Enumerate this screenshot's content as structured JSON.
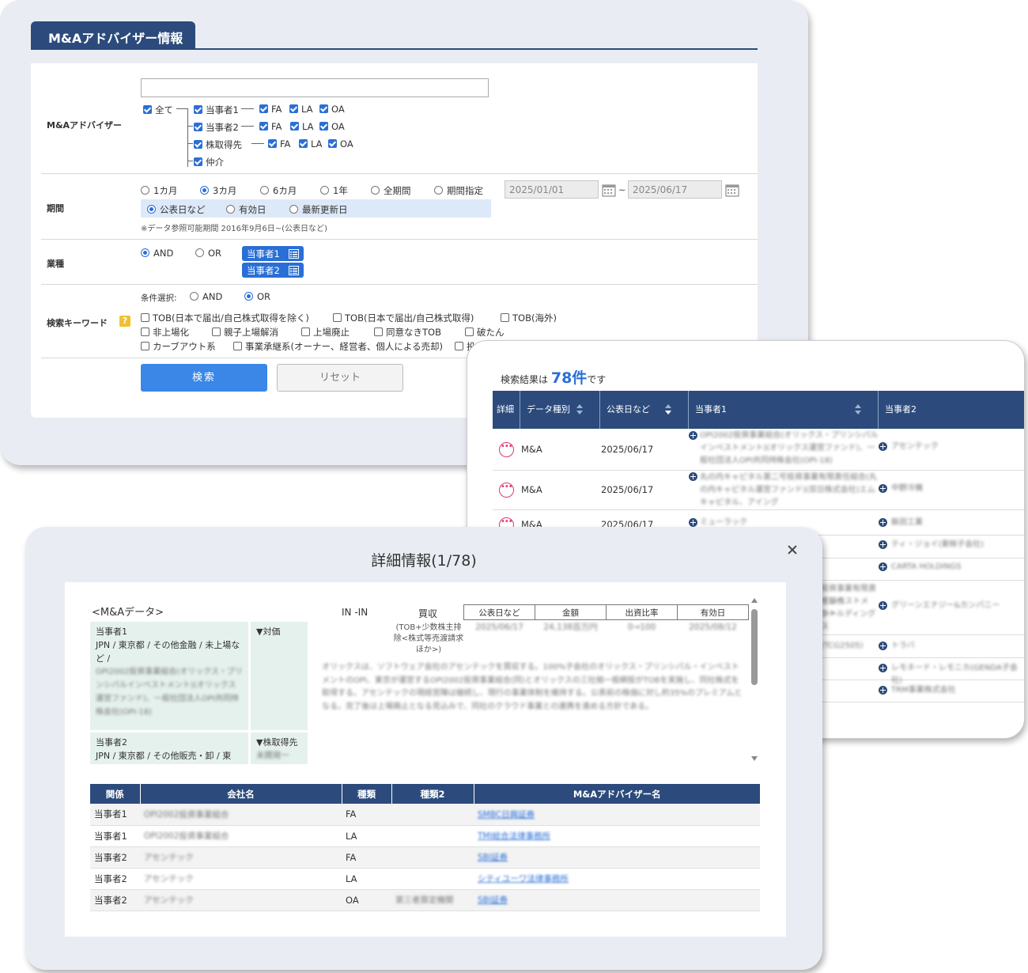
{
  "search_panel": {
    "tab_title": "M&Aアドバイザー情報",
    "advisor": {
      "label": "M&Aアドバイザー",
      "all_label": "全て",
      "rows": [
        {
          "party": "当事者1",
          "roles": [
            "FA",
            "LA",
            "OA"
          ]
        },
        {
          "party": "当事者2",
          "roles": [
            "FA",
            "LA",
            "OA"
          ]
        },
        {
          "party": "株取得先",
          "roles": [
            "FA",
            "LA",
            "OA"
          ]
        },
        {
          "party": "仲介",
          "roles": []
        }
      ]
    },
    "period": {
      "label": "期間",
      "options": [
        "1カ月",
        "3カ月",
        "6カ月",
        "1年",
        "全期間",
        "期間指定"
      ],
      "selected": "3カ月",
      "date_from": "2025/01/01",
      "date_sep": "~",
      "date_to": "2025/06/17",
      "basis_options": [
        "公表日など",
        "有効日",
        "最新更新日"
      ],
      "note": "※データ参照可能期間 2016年9月6日~(公表日など)"
    },
    "industry": {
      "label": "業種",
      "and_label": "AND",
      "or_label": "OR",
      "btn1": "当事者1",
      "btn2": "当事者2"
    },
    "keyword": {
      "label": "検索キーワード",
      "help": "?",
      "cond_label": "条件選択:",
      "and_label": "AND",
      "or_label": "OR",
      "items": [
        "TOB(日本で届出/自己株式取得を除く)",
        "TOB(日本で届出/自己株式取得)",
        "TOB(海外)",
        "非上場化",
        "親子上場解消",
        "上場廃止",
        "同意なきTOB",
        "破たん",
        "カーブアウト系",
        "事業承継系(オーナー、経営者、個人による売却)",
        "投"
      ]
    },
    "search_btn": "検索",
    "reset_btn": "リセット"
  },
  "results_panel": {
    "prefix": "検索結果は",
    "count": "78件",
    "suffix": "です",
    "columns": [
      "詳細",
      "データ種別",
      "公表日など",
      "当事者1",
      "当事者2"
    ],
    "rows": [
      {
        "type": "M&A",
        "date": "2025/06/17",
        "party1": "OPI2002投資事業組合(オリックス・プリンシパルインベストメント)(オリックス運営ファンド)、一般社団法人OPI共同持株会社(OPI-18)",
        "party2": "アセンテック"
      },
      {
        "type": "M&A",
        "date": "2025/06/17",
        "party1": "丸の内キャピタル第二号投資事業有限責任組合(丸の内キャピタル運営ファンド)(双日株式会社)エムキャピタル、アイング",
        "party2": "中野冷機"
      },
      {
        "type": "M&A",
        "date": "2025/06/17",
        "party1": "ミューラック",
        "party2": "飯田工業"
      }
    ],
    "extra_party2": [
      "ティ・ジョイ(東映子会社)",
      "CARTA HOLDINGS",
      "グリーンエナジー&カンパニー",
      "トラバ",
      "レモネード・レモニカ(GENDA子会社)",
      "TRM事業株式会社"
    ],
    "extra_party1_fragments": [
      "投資事業有限責任組合",
      "インベストメント",
      "ホールディングス",
      "(TCG2505)"
    ]
  },
  "detail_modal": {
    "title": "詳細情報(1/78)",
    "section": "<M&Aデータ>",
    "party1_head": "当事者1",
    "party1_info": "JPN / 東京都 / その他金融 / 未上場など /",
    "party1_names": "OPI2002投資事業組合(オリックス・プリンシパルインベストメント)(オリックス運営ファンド)、一般社団法人OPI共同持株会社(OPI-18)",
    "party1_role": "▼対価",
    "party2_head": "当事者2",
    "party2_info": "JPN / 東京都 / その他販売・卸 / 東",
    "party2_role": "▼株取得先",
    "party2_role_sub": "未開発ー",
    "deal_type": "IN -IN",
    "deal_kind": "買収",
    "deal_note": "(TOB+少数株主排除<株式等売渡請求ほか>)",
    "mini_table": {
      "headers": [
        "公表日など",
        "金額",
        "出資比率",
        "有効日"
      ],
      "values": [
        "2025/06/17",
        "24,138百万円",
        "0→100",
        "2025/08/12"
      ]
    },
    "description": "オリックスは、ソフトウェア会社のアセンテックを買収する。100%子会社のオリックス・プリンシパル・インベストメントのOPI、東京が運営するOPI2002投資事業組合(同)とオリックスの三社揃一般網投がTOBを実施し、同社株式を取得する。アセンテックの現経営陣は継続し、現行の事業体制を維持する。公表前の株価に対し約35%のプレミアムとなる。完了後は上場廃止となる見込みで、同社のクラウド事業との連携を進める方針である。",
    "table": {
      "headers": [
        "関係",
        "会社名",
        "種類",
        "種類2",
        "M&Aアドバイザー名"
      ],
      "rows": [
        {
          "rel": "当事者1",
          "company": "OPI2002投資事業組合",
          "kind": "FA",
          "kind2": "",
          "advisor": "SMBC日興証券"
        },
        {
          "rel": "当事者1",
          "company": "OPI2002投資事業組合",
          "kind": "LA",
          "kind2": "",
          "advisor": "TMI総合法律事務所"
        },
        {
          "rel": "当事者2",
          "company": "アセンテック",
          "kind": "FA",
          "kind2": "",
          "advisor": "SBI証券"
        },
        {
          "rel": "当事者2",
          "company": "アセンテック",
          "kind": "LA",
          "kind2": "",
          "advisor": "シティユーワ法律事務所"
        },
        {
          "rel": "当事者2",
          "company": "アセンテック",
          "kind": "OA",
          "kind2": "第三者算定機関",
          "advisor": "SBI証券"
        }
      ]
    }
  },
  "colors": {
    "navy": "#2c4b7c",
    "accent_blue": "#2a6fd6",
    "panel_bg": "#e9edf3",
    "detail_pink": "#e0336e",
    "party_box_bg": "#e5f1ec"
  }
}
